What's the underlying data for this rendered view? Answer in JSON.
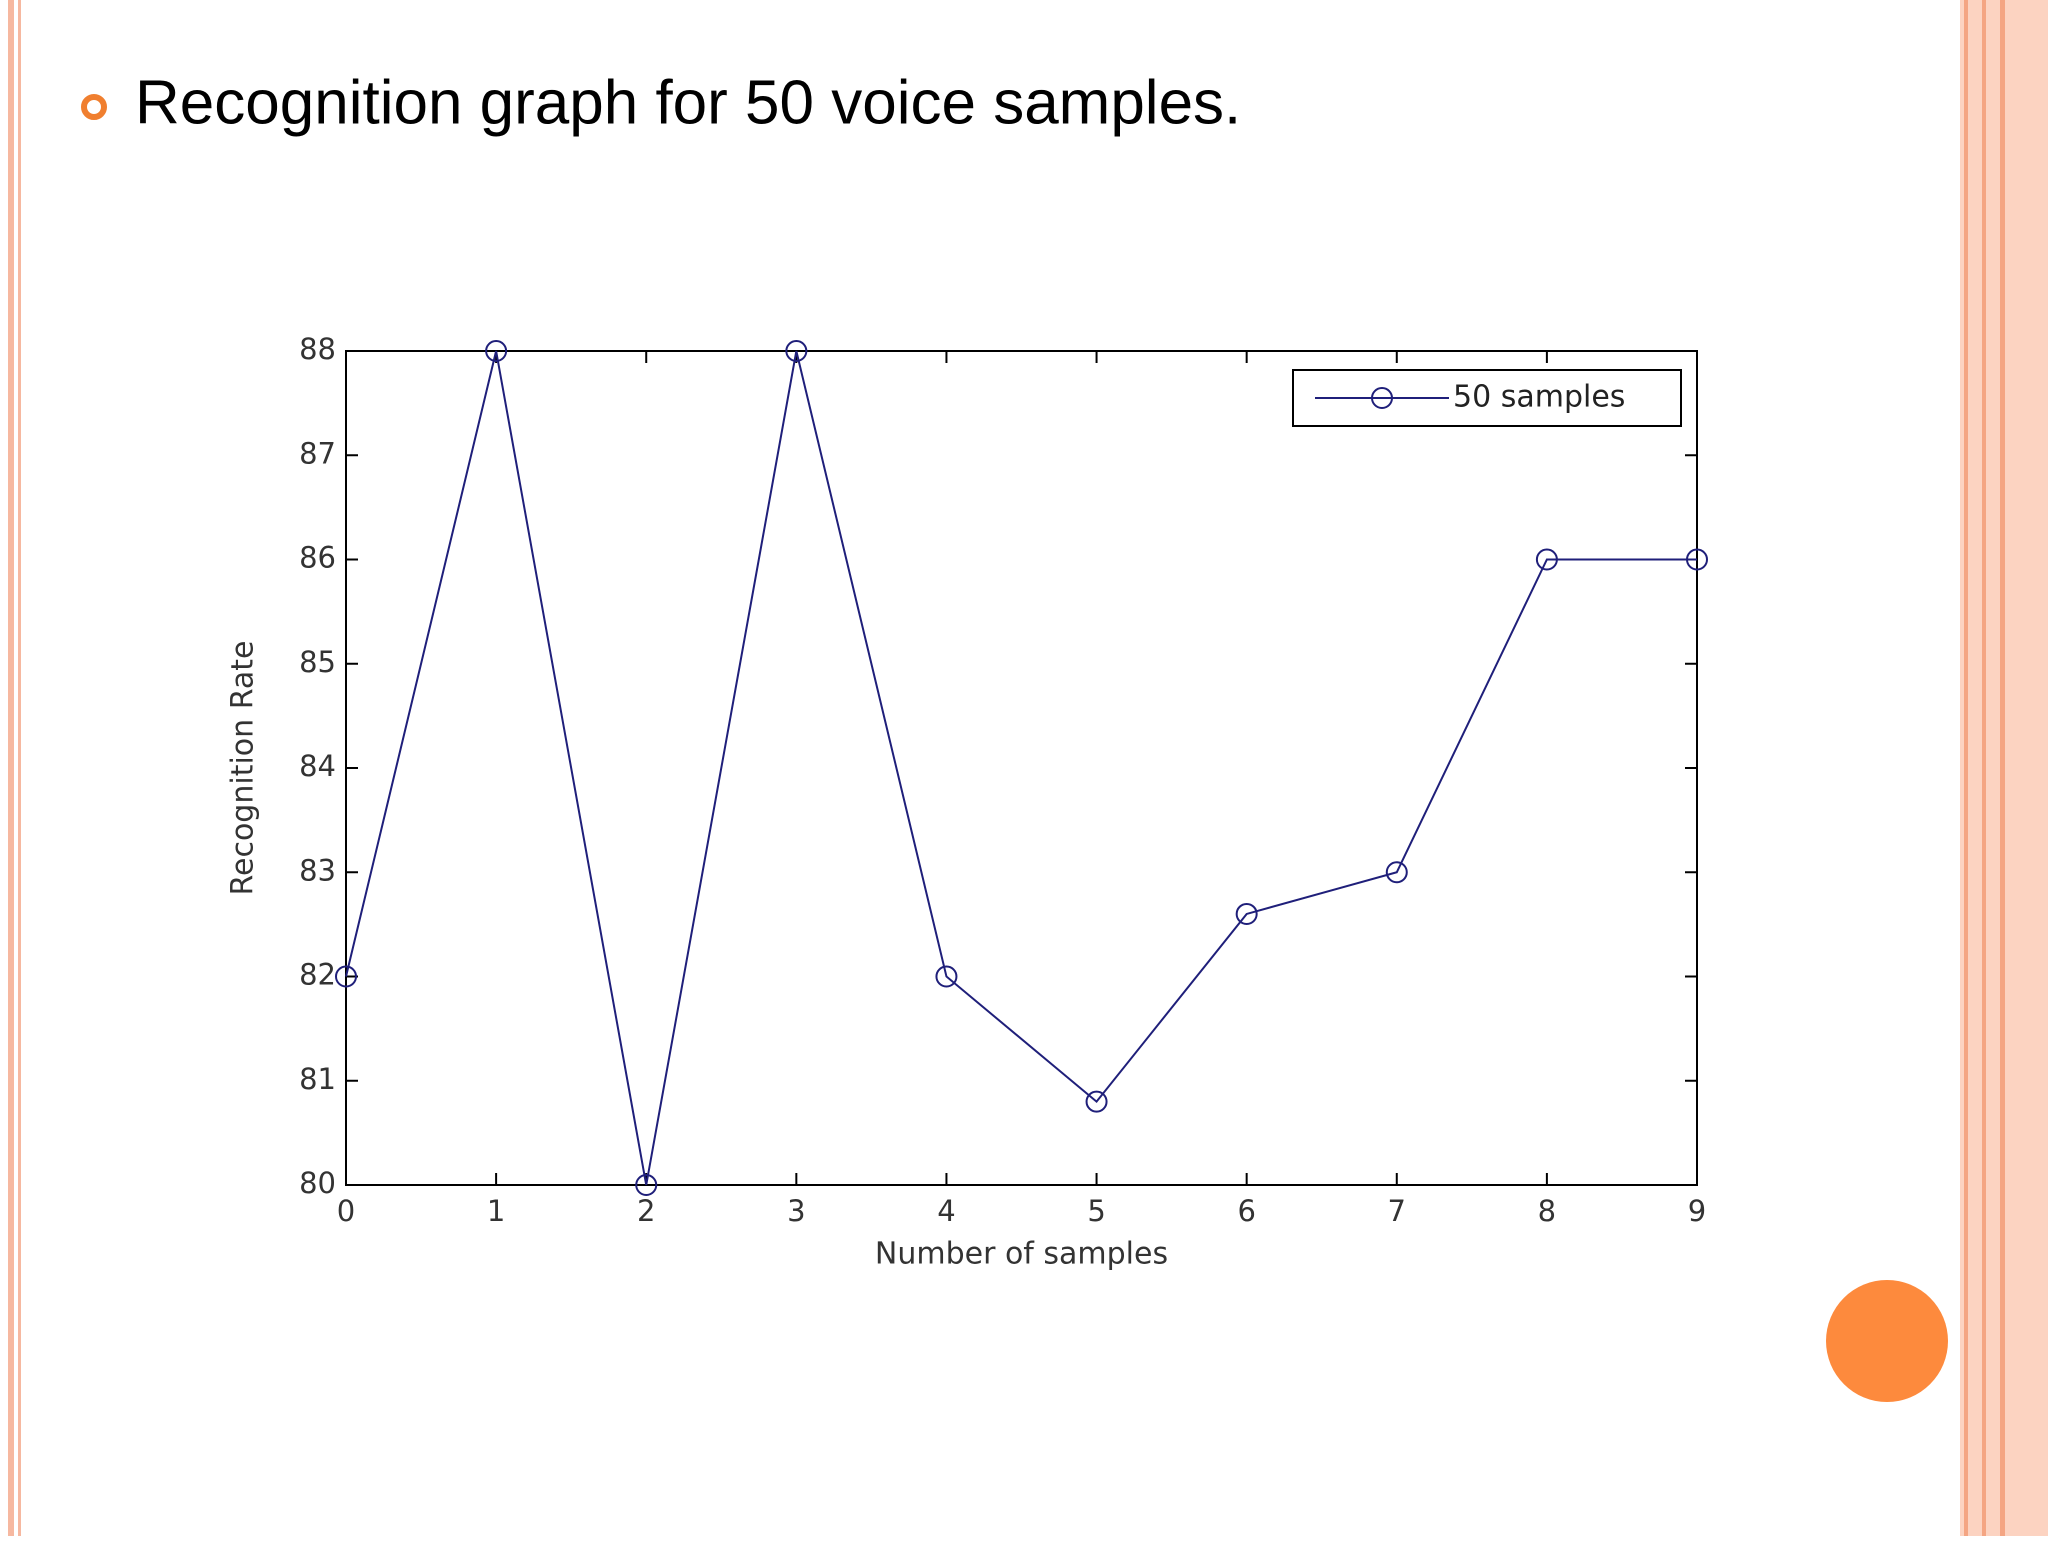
{
  "heading": "Recognition graph for 50 voice samples.",
  "chart_data": {
    "type": "line",
    "xlabel": "Number of samples",
    "ylabel": "Recognition Rate",
    "x": [
      0,
      1,
      2,
      3,
      4,
      5,
      6,
      7,
      8,
      9
    ],
    "series": [
      {
        "name": "50 samples",
        "color": "#1f1f7a",
        "marker": "circle",
        "values": [
          82,
          88,
          80,
          88,
          82,
          80.8,
          82.6,
          83,
          86,
          86
        ]
      }
    ],
    "xlim": [
      0,
      9
    ],
    "xticks": [
      0,
      1,
      2,
      3,
      4,
      5,
      6,
      7,
      8,
      9
    ],
    "ylim": [
      80,
      88
    ],
    "yticks": [
      80,
      81,
      82,
      83,
      84,
      85,
      86,
      87,
      88
    ],
    "grid": false,
    "legend": "upper right"
  }
}
